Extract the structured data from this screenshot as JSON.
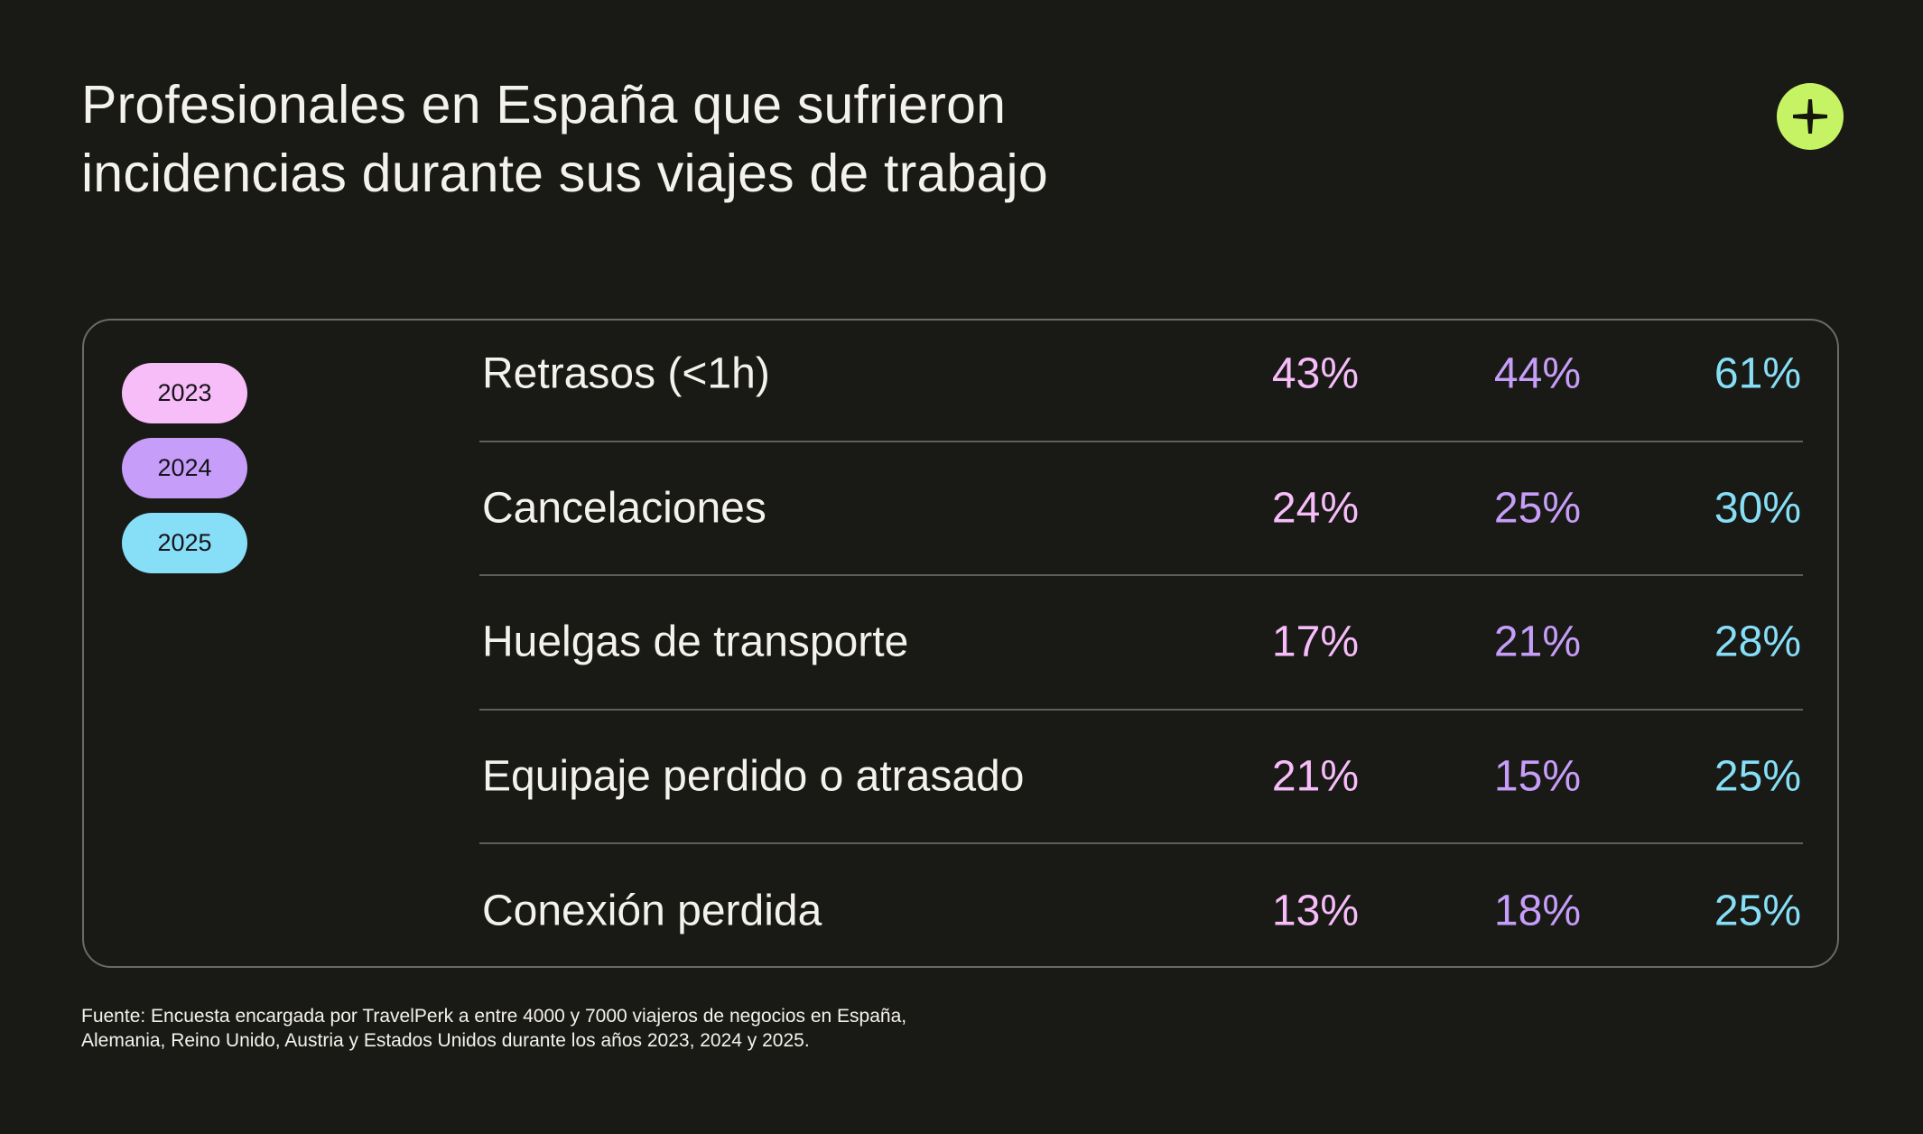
{
  "title": {
    "line1": "Profesionales en España que sufrieron",
    "line2": "incidencias durante sus viajes de trabajo"
  },
  "icon": {
    "name": "plus-icon",
    "color": "#c6f363"
  },
  "colors": {
    "background": "#191915",
    "2023": "#f6bdf9",
    "2024": "#c69ef9",
    "2025": "#86def7"
  },
  "chart_data": {
    "type": "table",
    "title": "Profesionales en España que sufrieron incidencias durante sus viajes de trabajo",
    "legend": [
      "2023",
      "2024",
      "2025"
    ],
    "legend_position": "left",
    "categories": [
      "Retrasos (<1h)",
      "Cancelaciones",
      "Huelgas de transporte",
      "Equipaje perdido o atrasado",
      "Conexión perdida"
    ],
    "series": [
      {
        "name": "2023",
        "values": [
          43,
          24,
          17,
          21,
          13
        ],
        "labels": [
          "43%",
          "24%",
          "17%",
          "21%",
          "13%"
        ]
      },
      {
        "name": "2024",
        "values": [
          44,
          25,
          21,
          15,
          18
        ],
        "labels": [
          "44%",
          "25%",
          "21%",
          "15%",
          "18%"
        ]
      },
      {
        "name": "2025",
        "values": [
          61,
          30,
          28,
          25,
          25
        ],
        "labels": [
          "61%",
          "30%",
          "28%",
          "25%",
          "25%"
        ]
      }
    ],
    "unit": "%"
  },
  "footnote": {
    "line1": "Fuente: Encuesta encargada por TravelPerk a entre 4000 y 7000 viajeros de negocios en España,",
    "line2": "Alemania, Reino Unido, Austria y Estados Unidos durante los años 2023, 2024 y 2025."
  }
}
